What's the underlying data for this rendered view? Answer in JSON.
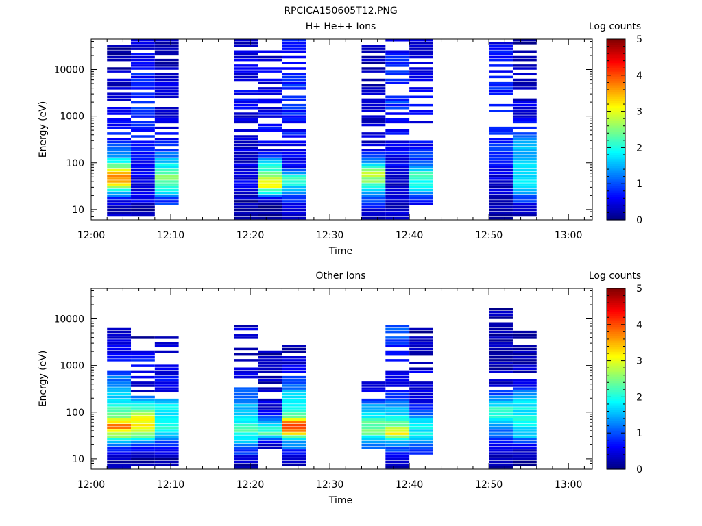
{
  "figure_title": "RPCICA150605T12.PNG",
  "colors": {
    "colormap": [
      "#000080",
      "#0000ff",
      "#0080ff",
      "#00ffff",
      "#80ff80",
      "#ffff00",
      "#ff8000",
      "#ff0000",
      "#800000"
    ]
  },
  "chart_data": [
    {
      "type": "heatmap",
      "title": "H+ He++ Ions",
      "xlabel": "Time",
      "ylabel": "Energy (eV)",
      "yscale": "log",
      "xlim": [
        "12:00",
        "13:03"
      ],
      "ylim": [
        6,
        45000
      ],
      "xticks": [
        "12:00",
        "12:10",
        "12:20",
        "12:30",
        "12:40",
        "12:50",
        "13:00"
      ],
      "yticks": [
        "10",
        "100",
        "1000",
        "10000"
      ],
      "colorbar": {
        "label": "Log counts",
        "min": 0,
        "max": 5,
        "ticks": [
          "0",
          "1",
          "2",
          "3",
          "4",
          "5"
        ]
      },
      "columns": [
        {
          "t0": "12:02",
          "t1": "12:05",
          "spectrum": [
            [
              10,
              0.3
            ],
            [
              16,
              0.6
            ],
            [
              25,
              1.8
            ],
            [
              40,
              3.6
            ],
            [
              55,
              3.8
            ],
            [
              80,
              2.5
            ],
            [
              150,
              1.4
            ],
            [
              300,
              0.8
            ],
            [
              1000,
              0.5
            ],
            [
              3000,
              0.4
            ],
            [
              10000,
              0.3
            ],
            [
              25000,
              0.2
            ]
          ]
        },
        {
          "t0": "12:05",
          "t1": "12:08",
          "spectrum": [
            [
              10,
              0.2
            ],
            [
              16,
              0.6
            ],
            [
              25,
              0.5
            ],
            [
              40,
              0.5
            ],
            [
              55,
              0.5
            ],
            [
              80,
              0.6
            ],
            [
              150,
              0.8
            ],
            [
              300,
              0.7
            ],
            [
              1000,
              0.9
            ],
            [
              3000,
              0.8
            ],
            [
              10000,
              0.7
            ],
            [
              30000,
              0.5
            ]
          ]
        },
        {
          "t0": "12:08",
          "t1": "12:11",
          "spectrum": [
            [
              16,
              0.9
            ],
            [
              25,
              2.0
            ],
            [
              40,
              2.5
            ],
            [
              55,
              2.4
            ],
            [
              80,
              1.9
            ],
            [
              150,
              1.2
            ],
            [
              300,
              0.6
            ],
            [
              1000,
              0.4
            ],
            [
              3000,
              0.4
            ],
            [
              10000,
              0.3
            ],
            [
              30000,
              0.2
            ]
          ]
        },
        {
          "t0": "12:18",
          "t1": "12:21",
          "spectrum": [
            [
              8,
              0.1
            ],
            [
              16,
              0.2
            ],
            [
              30,
              0.5
            ],
            [
              60,
              0.4
            ],
            [
              150,
              0.4
            ],
            [
              400,
              0.5
            ],
            [
              1000,
              0.5
            ],
            [
              3000,
              0.6
            ],
            [
              10000,
              0.5
            ],
            [
              30000,
              0.4
            ]
          ]
        },
        {
          "t0": "12:21",
          "t1": "12:24",
          "spectrum": [
            [
              8,
              0.1
            ],
            [
              16,
              0.2
            ],
            [
              30,
              3.0
            ],
            [
              50,
              2.8
            ],
            [
              200,
              0.4
            ],
            [
              500,
              0.6
            ],
            [
              1500,
              0.5
            ],
            [
              6000,
              0.5
            ],
            [
              20000,
              0.4
            ]
          ]
        },
        {
          "t0": "12:24",
          "t1": "12:27",
          "spectrum": [
            [
              8,
              0.3
            ],
            [
              16,
              0.8
            ],
            [
              30,
              1.7
            ],
            [
              50,
              2.2
            ],
            [
              80,
              0.5
            ],
            [
              200,
              0.6
            ],
            [
              600,
              0.7
            ],
            [
              2000,
              0.8
            ],
            [
              8000,
              0.8
            ],
            [
              30000,
              0.7
            ]
          ]
        },
        {
          "t0": "12:34",
          "t1": "12:37",
          "spectrum": [
            [
              8,
              0.2
            ],
            [
              20,
              1.3
            ],
            [
              40,
              2.6
            ],
            [
              60,
              2.8
            ],
            [
              90,
              1.6
            ],
            [
              200,
              0.4
            ],
            [
              600,
              0.4
            ],
            [
              2000,
              0.4
            ],
            [
              8000,
              0.3
            ],
            [
              25000,
              0.2
            ]
          ]
        },
        {
          "t0": "12:37",
          "t1": "12:40",
          "spectrum": [
            [
              8,
              0.4
            ],
            [
              20,
              0.3
            ],
            [
              50,
              0.4
            ],
            [
              100,
              0.6
            ],
            [
              300,
              0.6
            ],
            [
              800,
              0.7
            ],
            [
              2000,
              0.9
            ],
            [
              6000,
              0.8
            ],
            [
              20000,
              0.7
            ],
            [
              40000,
              0.6
            ]
          ]
        },
        {
          "t0": "12:40",
          "t1": "12:43",
          "spectrum": [
            [
              16,
              0.6
            ],
            [
              30,
              1.9
            ],
            [
              55,
              2.3
            ],
            [
              90,
              1.1
            ],
            [
              250,
              0.6
            ],
            [
              800,
              0.6
            ],
            [
              3000,
              0.6
            ],
            [
              10000,
              0.5
            ],
            [
              30000,
              0.4
            ]
          ]
        },
        {
          "t0": "12:50",
          "t1": "12:53",
          "spectrum": [
            [
              9,
              0.2
            ],
            [
              25,
              0.3
            ],
            [
              60,
              0.5
            ],
            [
              150,
              0.8
            ],
            [
              400,
              0.9
            ],
            [
              1000,
              0.9
            ],
            [
              3000,
              0.8
            ],
            [
              10000,
              0.7
            ],
            [
              35000,
              0.6
            ]
          ]
        },
        {
          "t0": "12:53",
          "t1": "12:56",
          "spectrum": [
            [
              10,
              0.3
            ],
            [
              20,
              1.2
            ],
            [
              35,
              1.9
            ],
            [
              70,
              1.7
            ],
            [
              150,
              1.5
            ],
            [
              300,
              1.4
            ],
            [
              700,
              0.6
            ],
            [
              2000,
              0.4
            ],
            [
              8000,
              0.3
            ],
            [
              30000,
              0.2
            ]
          ]
        }
      ]
    },
    {
      "type": "heatmap",
      "title": "Other Ions",
      "xlabel": "Time",
      "ylabel": "Energy (eV)",
      "yscale": "log",
      "xlim": [
        "12:00",
        "13:03"
      ],
      "ylim": [
        6,
        45000
      ],
      "xticks": [
        "12:00",
        "12:10",
        "12:20",
        "12:30",
        "12:40",
        "12:50",
        "13:00"
      ],
      "yticks": [
        "10",
        "100",
        "1000",
        "10000"
      ],
      "colorbar": {
        "label": "Log counts",
        "min": 0,
        "max": 5,
        "ticks": [
          "0",
          "1",
          "2",
          "3",
          "4",
          "5"
        ]
      },
      "columns": [
        {
          "t0": "12:02",
          "t1": "12:05",
          "spectrum": [
            [
              8,
              0.2
            ],
            [
              18,
              1.0
            ],
            [
              30,
              2.5
            ],
            [
              50,
              3.9
            ],
            [
              80,
              2.6
            ],
            [
              150,
              1.8
            ],
            [
              280,
              1.5
            ],
            [
              1800,
              0.6
            ],
            [
              4500,
              0.3
            ]
          ]
        },
        {
          "t0": "12:05",
          "t1": "12:08",
          "spectrum": [
            [
              10,
              0.2
            ],
            [
              20,
              0.8
            ],
            [
              35,
              2.8
            ],
            [
              50,
              3.4
            ],
            [
              80,
              2.9
            ],
            [
              150,
              1.9
            ],
            [
              280,
              0.3
            ],
            [
              1200,
              0.8
            ],
            [
              4500,
              0.2
            ]
          ]
        },
        {
          "t0": "12:08",
          "t1": "12:11",
          "spectrum": [
            [
              10,
              0.2
            ],
            [
              20,
              0.9
            ],
            [
              40,
              2.0
            ],
            [
              80,
              1.9
            ],
            [
              160,
              1.7
            ],
            [
              230,
              0.6
            ],
            [
              3000,
              0.4
            ],
            [
              4500,
              0.2
            ]
          ]
        },
        {
          "t0": "12:18",
          "t1": "12:21",
          "spectrum": [
            [
              8,
              0.2
            ],
            [
              22,
              1.4
            ],
            [
              40,
              2.2
            ],
            [
              80,
              1.7
            ],
            [
              200,
              1.3
            ],
            [
              500,
              0.6
            ],
            [
              1800,
              0.3
            ],
            [
              5000,
              0.4
            ]
          ]
        },
        {
          "t0": "12:21",
          "t1": "12:24",
          "spectrum": [
            [
              22,
              0.3
            ],
            [
              35,
              2.4
            ],
            [
              100,
              0.5
            ],
            [
              200,
              0.4
            ],
            [
              700,
              0.2
            ],
            [
              2000,
              0.2
            ]
          ]
        },
        {
          "t0": "12:24",
          "t1": "12:27",
          "spectrum": [
            [
              10,
              0.2
            ],
            [
              25,
              1.7
            ],
            [
              40,
              3.8
            ],
            [
              55,
              4.2
            ],
            [
              80,
              2.3
            ],
            [
              200,
              1.8
            ],
            [
              500,
              0.8
            ],
            [
              1200,
              0.4
            ],
            [
              1900,
              0.2
            ]
          ]
        },
        {
          "t0": "12:34",
          "t1": "12:37",
          "spectrum": [
            [
              22,
              1.2
            ],
            [
              35,
              2.4
            ],
            [
              60,
              2.3
            ],
            [
              100,
              1.6
            ],
            [
              200,
              0.9
            ],
            [
              350,
              0.3
            ]
          ]
        },
        {
          "t0": "12:37",
          "t1": "12:40",
          "spectrum": [
            [
              8,
              0.2
            ],
            [
              22,
              1.4
            ],
            [
              35,
              3.2
            ],
            [
              55,
              2.3
            ],
            [
              100,
              1.6
            ],
            [
              200,
              0.8
            ],
            [
              500,
              0.6
            ],
            [
              1200,
              0.5
            ],
            [
              5000,
              1.0
            ]
          ]
        },
        {
          "t0": "12:40",
          "t1": "12:43",
          "spectrum": [
            [
              18,
              0.9
            ],
            [
              35,
              1.9
            ],
            [
              70,
              1.6
            ],
            [
              130,
              0.6
            ],
            [
              2000,
              0.3
            ],
            [
              6000,
              0.2
            ]
          ]
        },
        {
          "t0": "12:50",
          "t1": "12:53",
          "spectrum": [
            [
              8,
              0.2
            ],
            [
              20,
              0.6
            ],
            [
              40,
              1.2
            ],
            [
              100,
              2.3
            ],
            [
              200,
              1.4
            ],
            [
              350,
              0.3
            ],
            [
              1800,
              0.2
            ],
            [
              7500,
              0.2
            ],
            [
              18000,
              0.2
            ]
          ]
        },
        {
          "t0": "12:53",
          "t1": "12:56",
          "spectrum": [
            [
              10,
              0.2
            ],
            [
              20,
              0.7
            ],
            [
              35,
              1.8
            ],
            [
              80,
              1.9
            ],
            [
              200,
              1.7
            ],
            [
              400,
              0.4
            ],
            [
              900,
              0.3
            ],
            [
              3000,
              0.3
            ],
            [
              4000,
              0.2
            ]
          ]
        }
      ]
    }
  ]
}
